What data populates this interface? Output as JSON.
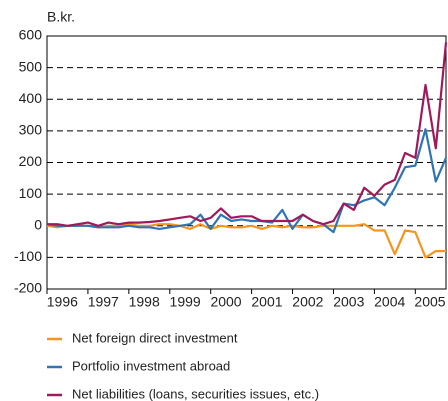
{
  "chart_data": {
    "type": "line",
    "y_label": "B.kr.",
    "categories": [
      "1996",
      null,
      null,
      null,
      "1997",
      null,
      null,
      null,
      "1998",
      null,
      null,
      null,
      "1999",
      null,
      null,
      null,
      "2000",
      null,
      null,
      null,
      "2001",
      null,
      null,
      null,
      "2002",
      null,
      null,
      null,
      "2003",
      null,
      null,
      null,
      "2004",
      null,
      null,
      null,
      "2005",
      null,
      null,
      null
    ],
    "ylim": [
      -200,
      600
    ],
    "yticks": [
      -200,
      -100,
      0,
      100,
      200,
      300,
      400,
      500,
      600
    ],
    "grid": true,
    "series": [
      {
        "name": "Net foreign direct investment",
        "color": "#f7941d",
        "values": [
          0,
          -5,
          0,
          0,
          0,
          -5,
          0,
          0,
          5,
          0,
          0,
          5,
          5,
          0,
          -10,
          5,
          -10,
          0,
          -5,
          -5,
          0,
          -10,
          0,
          -5,
          0,
          -5,
          -5,
          0,
          0,
          0,
          0,
          5,
          -15,
          -15,
          -90,
          -15,
          -20,
          -100,
          -80,
          -80
        ]
      },
      {
        "name": "Portfolio investment abroad",
        "color": "#2f75b5",
        "values": [
          5,
          0,
          0,
          0,
          0,
          -5,
          -5,
          -5,
          0,
          -5,
          -5,
          -10,
          -5,
          0,
          5,
          35,
          -10,
          35,
          15,
          20,
          15,
          15,
          10,
          50,
          -10,
          35,
          15,
          5,
          -20,
          70,
          65,
          80,
          90,
          65,
          120,
          185,
          190,
          305,
          140,
          215
        ]
      },
      {
        "name": "Net liabilities (loans, securities issues, etc.)",
        "color": "#a0195a",
        "values": [
          5,
          5,
          0,
          5,
          10,
          0,
          10,
          5,
          10,
          10,
          12,
          15,
          20,
          25,
          30,
          15,
          25,
          55,
          25,
          30,
          30,
          15,
          15,
          15,
          15,
          35,
          15,
          5,
          15,
          70,
          50,
          120,
          95,
          130,
          145,
          230,
          215,
          445,
          245,
          580
        ]
      }
    ]
  }
}
